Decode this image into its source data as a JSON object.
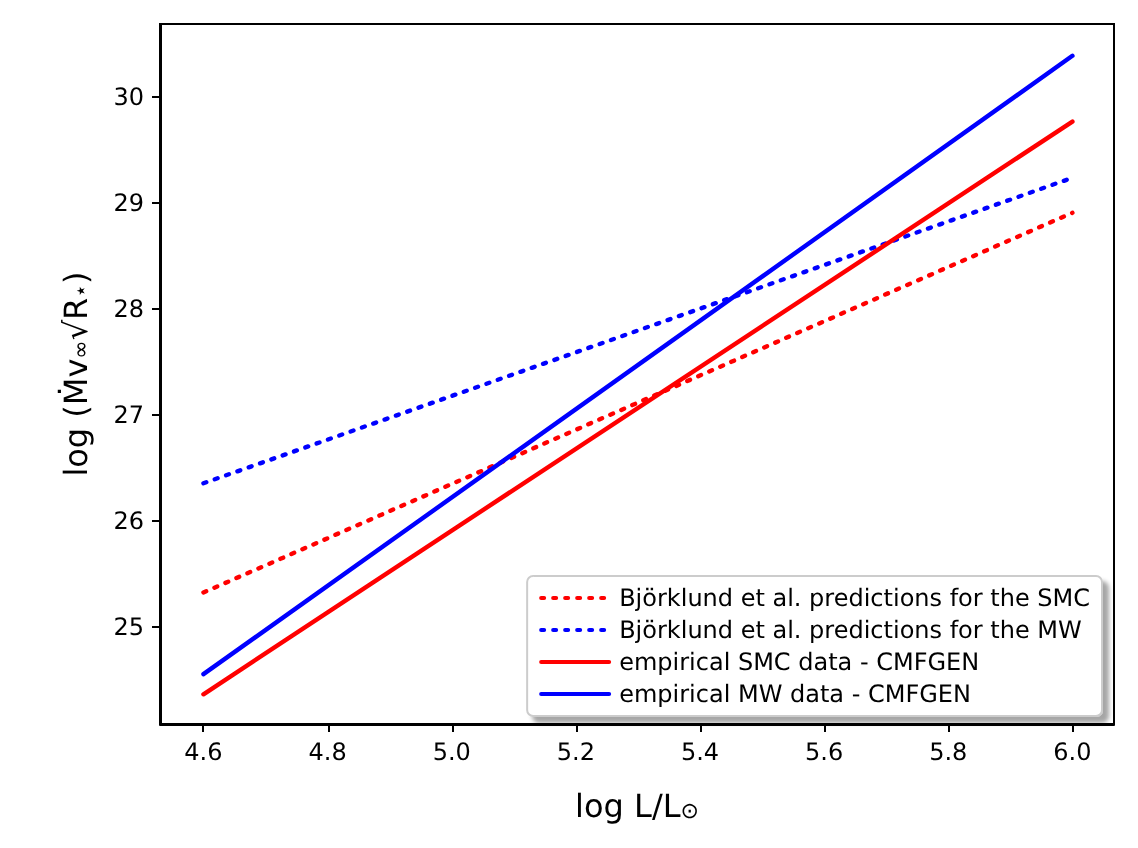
{
  "chart_data": {
    "type": "line",
    "xlabel": "log L/L$_{⊙}$",
    "ylabel": "log (Ṁv$_{∞}$√R$_{⋆}$)",
    "x": [
      4.6,
      6.0
    ],
    "series": [
      {
        "name": "Björklund et al. predictions for the SMC",
        "color": "#ff0000",
        "line_style": "dotted",
        "values": [
          25.33,
          28.91
        ]
      },
      {
        "name": "Björklund et al. predictions for the MW",
        "color": "#0000ff",
        "line_style": "dotted",
        "values": [
          26.36,
          29.24
        ]
      },
      {
        "name": "empirical SMC data - CMFGEN",
        "color": "#ff0000",
        "line_style": "solid",
        "values": [
          24.37,
          29.77
        ]
      },
      {
        "name": "empirical MW data - CMFGEN",
        "color": "#0000ff",
        "line_style": "solid",
        "values": [
          24.56,
          30.39
        ]
      }
    ],
    "xlim": [
      4.53,
      6.067
    ],
    "xticks": [
      4.6,
      4.8,
      {
        "value": 5,
        "label": "5.0"
      },
      5.2,
      5.4,
      5.6,
      5.8,
      {
        "value": 6,
        "label": "6.0"
      }
    ],
    "ylim": [
      24.09,
      30.69
    ],
    "yticks": [
      25,
      26,
      27,
      28,
      29,
      30
    ],
    "grid": false,
    "legend": "bottom right",
    "marker": "none"
  }
}
